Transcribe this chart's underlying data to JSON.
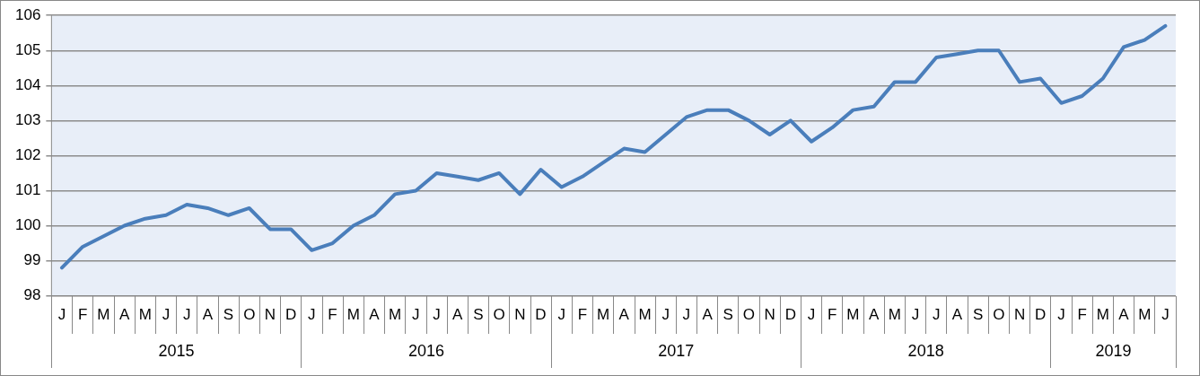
{
  "chart_data": {
    "type": "line",
    "categories": [
      "J",
      "F",
      "M",
      "A",
      "M",
      "J",
      "J",
      "A",
      "S",
      "O",
      "N",
      "D",
      "J",
      "F",
      "M",
      "A",
      "M",
      "J",
      "J",
      "A",
      "S",
      "O",
      "N",
      "D",
      "J",
      "F",
      "M",
      "A",
      "M",
      "J",
      "J",
      "A",
      "S",
      "O",
      "N",
      "D",
      "J",
      "F",
      "M",
      "A",
      "M",
      "J",
      "J",
      "A",
      "S",
      "O",
      "N",
      "D",
      "J",
      "F",
      "M",
      "A",
      "M",
      "J"
    ],
    "series": [
      {
        "color": "#4a7ebb",
        "values": [
          98.8,
          99.4,
          99.7,
          100.0,
          100.2,
          100.3,
          100.6,
          100.5,
          100.3,
          100.5,
          99.9,
          99.9,
          99.3,
          99.5,
          100.0,
          100.3,
          100.9,
          101.0,
          101.5,
          101.4,
          101.3,
          101.5,
          100.9,
          101.6,
          101.1,
          101.4,
          101.8,
          102.2,
          102.1,
          102.6,
          103.1,
          103.3,
          103.3,
          103.0,
          102.6,
          103.0,
          102.4,
          102.8,
          103.3,
          103.4,
          104.1,
          104.1,
          104.8,
          104.9,
          105.0,
          105.0,
          104.1,
          104.2,
          103.5,
          103.7,
          104.2,
          105.1,
          105.3,
          105.7
        ]
      }
    ],
    "ylim": [
      98,
      106
    ],
    "yticks": [
      98,
      99,
      100,
      101,
      102,
      103,
      104,
      105,
      106
    ],
    "grid": "y",
    "legend": false,
    "marker": "none",
    "line_style": "solid",
    "annotations": [
      "2015",
      "2016",
      "2017",
      "2018",
      "2019"
    ]
  }
}
